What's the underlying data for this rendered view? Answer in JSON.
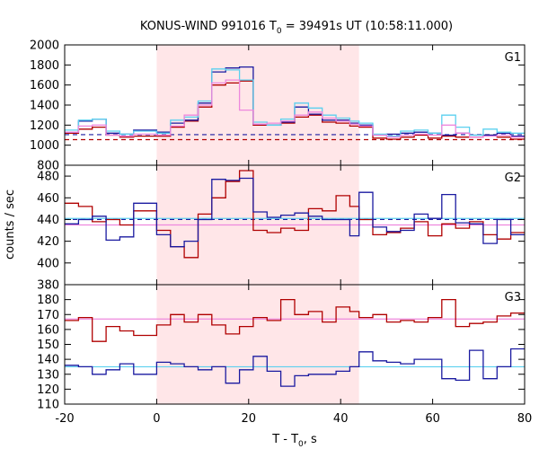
{
  "chart_data": {
    "type": "line",
    "title": "KONUS-WIND 991016 T",
    "title_sub": "0",
    "title_rest": " = 39491s UT (10:58:11.000)",
    "xlabel_main": "T - T",
    "xlabel_sub": "0",
    "xlabel_rest": ", s",
    "ylabel": "counts / sec",
    "xlim": [
      -20,
      80
    ],
    "x_ticks": [
      -20,
      0,
      20,
      40,
      60,
      80
    ],
    "shaded_interval": [
      0,
      44
    ],
    "shade_color": "#ffe6e8",
    "colors": {
      "red": "#b00000",
      "blue": "#1a1aa0",
      "cyan": "#5bd0ef",
      "pink": "#ee88dd"
    },
    "panels": [
      {
        "label": "G1",
        "ylim": [
          800,
          2000
        ],
        "y_ticks": [
          800,
          1000,
          1200,
          1400,
          1600,
          1800,
          2000
        ],
        "bin_edges": [
          -20,
          -17,
          -14,
          -11,
          -8,
          -5,
          0,
          3,
          6,
          9,
          12,
          15,
          18,
          21,
          24,
          27,
          30,
          33,
          36,
          39,
          42,
          44,
          47,
          50,
          53,
          56,
          59,
          62,
          65,
          68,
          71,
          74,
          77,
          80
        ],
        "series": [
          {
            "color": "red",
            "values": [
              1120,
              1160,
              1180,
              1100,
              1080,
              1090,
              1090,
              1180,
              1240,
              1380,
              1600,
              1620,
              1640,
              1200,
              1200,
              1220,
              1280,
              1300,
              1230,
              1220,
              1190,
              1180,
              1070,
              1060,
              1080,
              1100,
              1070,
              1090,
              1080,
              1080,
              1100,
              1080,
              1060
            ]
          },
          {
            "color": "blue",
            "values": [
              1130,
              1240,
              1260,
              1120,
              1110,
              1150,
              1130,
              1220,
              1250,
              1420,
              1730,
              1770,
              1780,
              1210,
              1200,
              1230,
              1380,
              1310,
              1250,
              1250,
              1220,
              1200,
              1100,
              1110,
              1120,
              1130,
              1120,
              1100,
              1120,
              1100,
              1100,
              1120,
              1090
            ]
          },
          {
            "color": "cyan",
            "values": [
              1150,
              1250,
              1260,
              1140,
              1110,
              1140,
              1120,
              1250,
              1280,
              1440,
              1760,
              1750,
              1650,
              1230,
              1200,
              1260,
              1420,
              1370,
              1300,
              1270,
              1240,
              1220,
              1110,
              1090,
              1140,
              1150,
              1120,
              1300,
              1180,
              1100,
              1160,
              1130,
              1120
            ]
          },
          {
            "color": "pink",
            "values": [
              1130,
              1190,
              1200,
              1100,
              1090,
              1110,
              1100,
              1190,
              1300,
              1400,
              1620,
              1650,
              1350,
              1210,
              1220,
              1240,
              1300,
              1330,
              1270,
              1240,
              1210,
              1190,
              1100,
              1080,
              1100,
              1110,
              1100,
              1200,
              1120,
              1080,
              1090,
              1100,
              1080
            ]
          }
        ],
        "bg_lines": [
          {
            "color": "blue",
            "dashed": true,
            "value": 1105
          },
          {
            "color": "red",
            "dashed": true,
            "value": 1055
          }
        ]
      },
      {
        "label": "G2",
        "ylim": [
          380,
          490
        ],
        "y_ticks": [
          380,
          400,
          420,
          440,
          460,
          480
        ],
        "bin_edges": [
          -20,
          -17,
          -14,
          -11,
          -8,
          -5,
          0,
          3,
          6,
          9,
          12,
          15,
          18,
          21,
          24,
          27,
          30,
          33,
          36,
          39,
          42,
          44,
          47,
          50,
          53,
          56,
          59,
          62,
          65,
          68,
          71,
          74,
          77,
          80
        ],
        "series": [
          {
            "color": "red",
            "values": [
              455,
              452,
              438,
              440,
              435,
              448,
              430,
              415,
              405,
              445,
              460,
              475,
              485,
              430,
              428,
              432,
              430,
              450,
              448,
              462,
              452,
              440,
              426,
              428,
              432,
              438,
              425,
              436,
              432,
              438,
              426,
              422,
              428
            ]
          },
          {
            "color": "blue",
            "values": [
              436,
              440,
              443,
              421,
              424,
              455,
              426,
              415,
              420,
              440,
              477,
              476,
              478,
              447,
              442,
              444,
              446,
              443,
              440,
              440,
              425,
              465,
              433,
              429,
              430,
              445,
              441,
              463,
              437,
              436,
              418,
              440,
              426
            ]
          }
        ],
        "bg_lines": [
          {
            "color": "cyan",
            "dashed": false,
            "value": 441
          },
          {
            "color": "pink",
            "dashed": false,
            "value": 435
          },
          {
            "color": "blue",
            "dashed": true,
            "value": 440
          }
        ]
      },
      {
        "label": "G3",
        "ylim": [
          110,
          190
        ],
        "y_ticks": [
          110,
          120,
          130,
          140,
          150,
          160,
          170,
          180
        ],
        "bin_edges": [
          -20,
          -17,
          -14,
          -11,
          -8,
          -5,
          0,
          3,
          6,
          9,
          12,
          15,
          18,
          21,
          24,
          27,
          30,
          33,
          36,
          39,
          42,
          44,
          47,
          50,
          53,
          56,
          59,
          62,
          65,
          68,
          71,
          74,
          77,
          80
        ],
        "series": [
          {
            "color": "red",
            "values": [
              166,
              168,
              152,
              162,
              159,
              156,
              163,
              170,
              165,
              170,
              163,
              157,
              162,
              168,
              166,
              180,
              170,
              172,
              165,
              175,
              172,
              168,
              170,
              165,
              166,
              165,
              168,
              180,
              162,
              164,
              165,
              169,
              171
            ]
          },
          {
            "color": "blue",
            "values": [
              136,
              135,
              130,
              133,
              137,
              130,
              138,
              137,
              135,
              133,
              135,
              124,
              133,
              142,
              132,
              122,
              129,
              130,
              130,
              132,
              135,
              145,
              139,
              138,
              137,
              140,
              140,
              127,
              126,
              146,
              127,
              135,
              147
            ]
          }
        ],
        "bg_lines": [
          {
            "color": "pink",
            "dashed": false,
            "value": 167
          },
          {
            "color": "cyan",
            "dashed": false,
            "value": 135
          }
        ]
      }
    ]
  }
}
